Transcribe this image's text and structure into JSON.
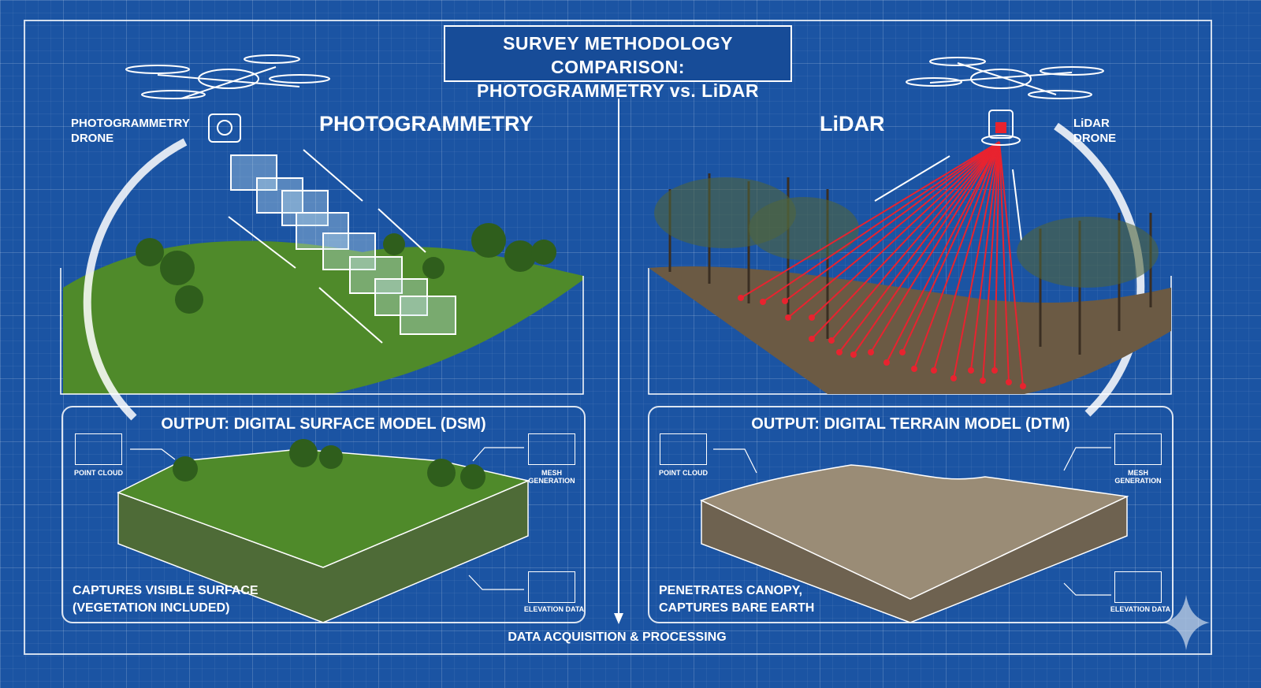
{
  "title": {
    "line1": "SURVEY METHODOLOGY COMPARISON:",
    "line2": "PHOTOGRAMMETRY vs. LiDAR"
  },
  "left": {
    "heading": "PHOTOGRAMMETRY",
    "drone_label_1": "PHOTOGRAMMETRY",
    "drone_label_2": "DRONE",
    "output_title": "OUTPUT: DIGITAL SURFACE MODEL (DSM)",
    "point_cloud": "POINT CLOUD",
    "mesh_1": "MESH",
    "mesh_2": "GENERATION",
    "elevation": "ELEVATION DATA",
    "caption_1": "CAPTURES VISIBLE SURFACE",
    "caption_2": "(VEGETATION INCLUDED)"
  },
  "right": {
    "heading": "LiDAR",
    "drone_label_1": "LiDAR",
    "drone_label_2": "DRONE",
    "output_title": "OUTPUT: DIGITAL TERRAIN MODEL (DTM)",
    "point_cloud": "POINT CLOUD",
    "mesh_1": "MESH",
    "mesh_2": "GENERATION",
    "elevation": "ELEVATION DATA",
    "caption_1": "PENETRATES CANOPY,",
    "caption_2": "CAPTURES BARE EARTH"
  },
  "footer": "DATA ACQUISITION & PROCESSING",
  "colors": {
    "background": "#1b54a3",
    "laser": "#e8232f",
    "vegetation": "#4f8a2a",
    "bare_earth": "#8a7a62"
  }
}
